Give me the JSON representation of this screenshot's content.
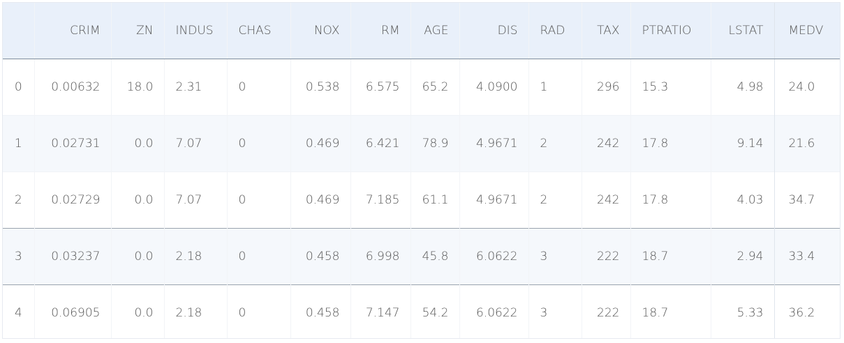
{
  "table": {
    "columns": [
      "",
      "CRIM",
      "ZN",
      "INDUS",
      "CHAS",
      "NOX",
      "RM",
      "AGE",
      "DIS",
      "RAD",
      "TAX",
      "PTRATIO",
      "LSTAT",
      "MEDV"
    ],
    "rows": [
      [
        "0",
        "0.00632",
        "18.0",
        "2.31",
        "0",
        "0.538",
        "6.575",
        "65.2",
        "4.0900",
        "1",
        "296",
        "15.3",
        "4.98",
        "24.0"
      ],
      [
        "1",
        "0.02731",
        "0.0",
        "7.07",
        "0",
        "0.469",
        "6.421",
        "78.9",
        "4.9671",
        "2",
        "242",
        "17.8",
        "9.14",
        "21.6"
      ],
      [
        "2",
        "0.02729",
        "0.0",
        "7.07",
        "0",
        "0.469",
        "7.185",
        "61.1",
        "4.9671",
        "2",
        "242",
        "17.8",
        "4.03",
        "34.7"
      ],
      [
        "3",
        "0.03237",
        "0.0",
        "2.18",
        "0",
        "0.458",
        "6.998",
        "45.8",
        "6.0622",
        "3",
        "222",
        "18.7",
        "2.94",
        "33.4"
      ],
      [
        "4",
        "0.06905",
        "0.0",
        "2.18",
        "0",
        "0.458",
        "7.147",
        "54.2",
        "6.0622",
        "3",
        "222",
        "18.7",
        "5.33",
        "36.2"
      ]
    ]
  },
  "colors": {
    "header_bg": "#e9f0fa",
    "row_alt_bg": "#f5f8fc",
    "text": "#555555"
  }
}
